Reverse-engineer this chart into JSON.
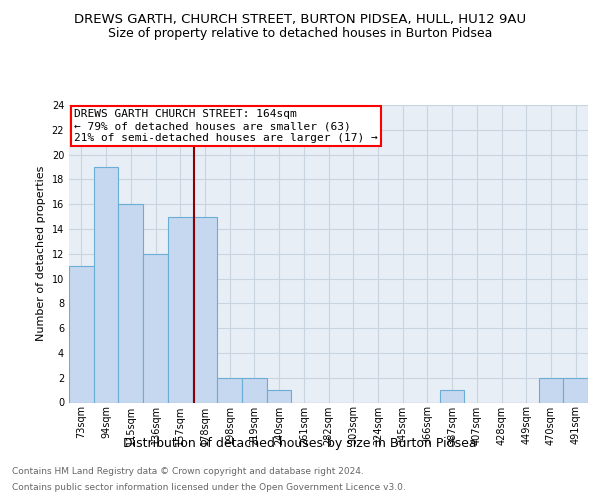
{
  "title": "DREWS GARTH, CHURCH STREET, BURTON PIDSEA, HULL, HU12 9AU",
  "subtitle": "Size of property relative to detached houses in Burton Pidsea",
  "xlabel": "Distribution of detached houses by size in Burton Pidsea",
  "ylabel": "Number of detached properties",
  "categories": [
    "73sqm",
    "94sqm",
    "115sqm",
    "136sqm",
    "157sqm",
    "178sqm",
    "198sqm",
    "219sqm",
    "240sqm",
    "261sqm",
    "282sqm",
    "303sqm",
    "324sqm",
    "345sqm",
    "366sqm",
    "387sqm",
    "407sqm",
    "428sqm",
    "449sqm",
    "470sqm",
    "491sqm"
  ],
  "values": [
    11,
    19,
    16,
    12,
    15,
    15,
    2,
    2,
    1,
    0,
    0,
    0,
    0,
    0,
    0,
    1,
    0,
    0,
    0,
    2,
    2
  ],
  "bar_color": "#c5d8ef",
  "bar_edgecolor": "#6aaed6",
  "grid_color": "#c8d4e0",
  "background_color": "#e8eef5",
  "annotation_line1": "DREWS GARTH CHURCH STREET: 164sqm",
  "annotation_line2": "← 79% of detached houses are smaller (63)",
  "annotation_line3": "21% of semi-detached houses are larger (17) →",
  "red_line_x": 4.57,
  "ylim": [
    0,
    24
  ],
  "ytick_step": 2,
  "title_fontsize": 9.5,
  "subtitle_fontsize": 9,
  "ylabel_fontsize": 8,
  "xlabel_fontsize": 9,
  "tick_fontsize": 7,
  "ann_fontsize": 8,
  "footer_line1": "Contains HM Land Registry data © Crown copyright and database right 2024.",
  "footer_line2": "Contains public sector information licensed under the Open Government Licence v3.0.",
  "footer_fontsize": 6.5,
  "footer_color": "#666666"
}
